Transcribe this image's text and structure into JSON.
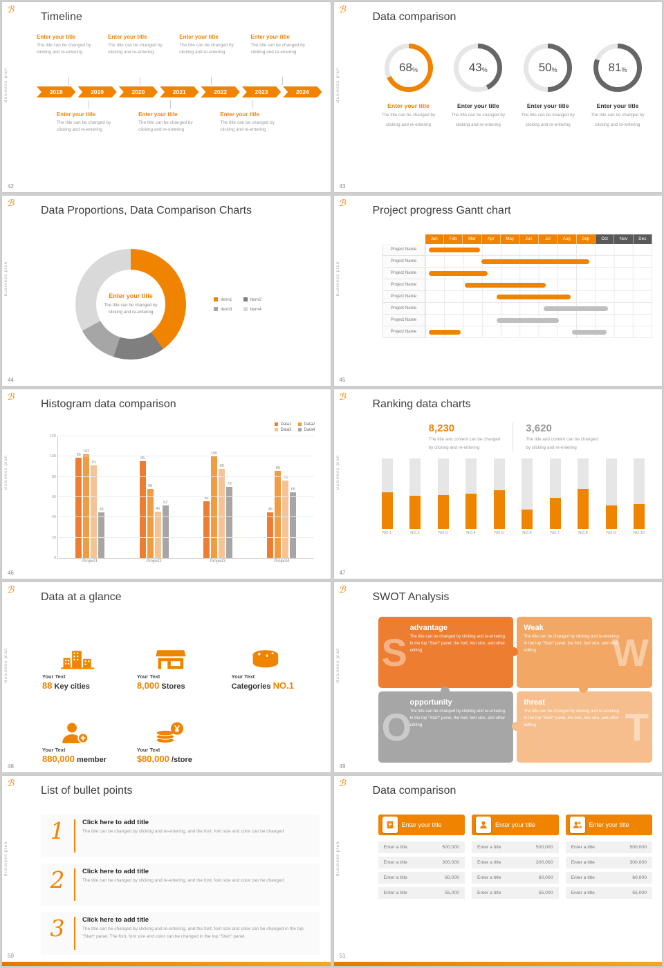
{
  "theme": {
    "orange": "#F08300",
    "orange_light": "#F2A765",
    "orange_pale": "#F6BE8C",
    "gray": "#A6A6A6",
    "gray_dark": "#595959",
    "bar_gray": "#BFBFBF",
    "ring_gray": "#666666",
    "ring_rest": "#E6E6E6"
  },
  "common": {
    "logo": "ℬ",
    "side_text": "Business plan"
  },
  "slides": {
    "s42": {
      "num": "42",
      "title": "Timeline",
      "years": [
        "2018",
        "2019",
        "2020",
        "2021",
        "2022",
        "2023",
        "2024"
      ],
      "top_count": 4,
      "bottom_count": 3,
      "entry_title": "Enter your title",
      "entry_caption": [
        "The title can be changed by",
        "clicking and re-entering"
      ]
    },
    "s43": {
      "num": "43",
      "title": "Data comparison",
      "rings": [
        {
          "pct": 68,
          "highlight": true
        },
        {
          "pct": 43,
          "highlight": false
        },
        {
          "pct": 50,
          "highlight": false
        },
        {
          "pct": 81,
          "highlight": false
        }
      ],
      "ring_title": "Enter your title",
      "ring_caption": [
        "The title can be changed by",
        "clicking and re-entering"
      ]
    },
    "s44": {
      "num": "44",
      "title": "Data Proportions, Data Comparison Charts",
      "center_title": "Enter your title",
      "center_caption": [
        "The title can be changed by",
        "clicking and re-entering"
      ],
      "chart_data": {
        "type": "pie",
        "segments": [
          {
            "label": "Item1",
            "value": 40,
            "color": "#F08300"
          },
          {
            "label": "Item2",
            "value": 15,
            "color": "#7F7F7F"
          },
          {
            "label": "Item3",
            "value": 12,
            "color": "#A6A6A6"
          },
          {
            "label": "Item4",
            "value": 33,
            "color": "#D9D9D9"
          }
        ]
      }
    },
    "s45": {
      "num": "45",
      "title": "Project progress Gantt chart",
      "months": [
        "Jan",
        "Feb",
        "Mar",
        "Apr",
        "May",
        "Jun",
        "Jul",
        "Aug",
        "Sep",
        "Oct",
        "Nov",
        "Dec"
      ],
      "orange_months": 9,
      "row_label": "Project Name",
      "rows": [
        [
          {
            "start": 0.2,
            "end": 2.9,
            "color": "orange"
          }
        ],
        [
          {
            "start": 3.0,
            "end": 8.7,
            "color": "orange"
          }
        ],
        [
          {
            "start": 0.2,
            "end": 3.3,
            "color": "orange"
          }
        ],
        [
          {
            "start": 2.1,
            "end": 6.4,
            "color": "orange"
          }
        ],
        [
          {
            "start": 3.8,
            "end": 7.7,
            "color": "orange"
          }
        ],
        [
          {
            "start": 6.3,
            "end": 9.7,
            "color": "gray"
          }
        ],
        [
          {
            "start": 3.8,
            "end": 7.1,
            "color": "gray"
          }
        ],
        [
          {
            "start": 0.2,
            "end": 1.9,
            "color": "orange"
          },
          {
            "start": 7.8,
            "end": 9.6,
            "color": "gray"
          }
        ]
      ]
    },
    "s46": {
      "num": "46",
      "title": "Histogram data comparison",
      "chart_data": {
        "type": "bar",
        "categories": [
          "Project1",
          "Project2",
          "Project3",
          "Project4"
        ],
        "series": [
          {
            "name": "Data1",
            "color": "#ED7D31",
            "values": [
              99,
              95,
              56,
              45
            ]
          },
          {
            "name": "Data2",
            "color": "#F09C42",
            "values": [
              102,
              68,
              100,
              86
            ]
          },
          {
            "name": "Data3",
            "color": "#F6C396",
            "values": [
              91,
              46,
              88,
              76
            ]
          },
          {
            "name": "Data4",
            "color": "#A6A6A6",
            "values": [
              45,
              52,
              70,
              65
            ]
          }
        ],
        "yticks": [
          0,
          20,
          40,
          60,
          80,
          100,
          120
        ],
        "ymax": 120
      }
    },
    "s47": {
      "num": "47",
      "title": "Ranking data charts",
      "stats": [
        {
          "value": "8,230",
          "highlight": true
        },
        {
          "value": "3,620",
          "highlight": false
        }
      ],
      "stat_caption": [
        "The title and content can be changed",
        "by clicking and re-entering"
      ],
      "chart_data": {
        "type": "bar",
        "categories": [
          "NO.1",
          "NO.2",
          "NO.3",
          "NO.4",
          "NO.5",
          "NO.6",
          "NO.7",
          "NO.8",
          "NO.9",
          "NO.10"
        ],
        "values": [
          52,
          47,
          48,
          50,
          55,
          28,
          44,
          57,
          33,
          35
        ],
        "ymax": 100
      }
    },
    "s48": {
      "num": "48",
      "title": "Data at a glance",
      "items": [
        {
          "icon": "city-icon",
          "label": "Your Text",
          "parts": [
            {
              "text": "88",
              "accent": true
            },
            {
              "text": " Key cities",
              "accent": false
            }
          ]
        },
        {
          "icon": "store-icon",
          "label": "Your Text",
          "parts": [
            {
              "text": "8,000",
              "accent": true
            },
            {
              "text": " Stores",
              "accent": false
            }
          ]
        },
        {
          "icon": "categories-icon",
          "label": "Your Text",
          "parts": [
            {
              "text": "Categories ",
              "accent": false
            },
            {
              "text": "NO.1",
              "accent": true
            }
          ]
        },
        {
          "icon": "member-icon",
          "label": "Your Text",
          "parts": [
            {
              "text": "880,000",
              "accent": true
            },
            {
              "text": " member",
              "accent": false
            }
          ]
        },
        {
          "icon": "money-icon",
          "label": "Your Text",
          "parts": [
            {
              "text": "$80,000",
              "accent": true
            },
            {
              "text": " /store",
              "accent": false
            }
          ]
        }
      ]
    },
    "s49": {
      "num": "49",
      "title": "SWOT Analysis",
      "quadrants": [
        {
          "letter": "S",
          "word": "advantage",
          "color": "#ED7D31",
          "caption": "The title can be changed by clicking and re-entering. In the top \"Start\" panel, the font, font size, and other editing"
        },
        {
          "letter": "W",
          "word": "Weak",
          "color": "#F2A765",
          "caption": "The title can be changed by clicking and re-entering. In the top \"Start\" panel, the font, font size, and other editing"
        },
        {
          "letter": "O",
          "word": "opportunity",
          "color": "#A6A6A6",
          "caption": "The title can be changed by clicking and re-entering. In the top \"Start\" panel, the font, font size, and other editing"
        },
        {
          "letter": "T",
          "word": "threat",
          "color": "#F6BE8C",
          "caption": "The title can be changed by clicking and re-entering. In the top \"Start\" panel, the font, font size, and other editing"
        }
      ]
    },
    "s50": {
      "num": "50",
      "title": "List of bullet points",
      "items": [
        {
          "num": "1",
          "title": "Click here to add title",
          "caption": "The title can be changed by clicking and re-entering, and the font, font size and color can be changed"
        },
        {
          "num": "2",
          "title": "Click here to add title",
          "caption": "The title can be changed by clicking and re-entering, and the font, font size and color can be changed"
        },
        {
          "num": "3",
          "title": "Click here to add title",
          "caption": "The title can be changed by clicking and re-entering, and the font, font size and color can be changed in the top \"Start\" panel. The font, font size and color can be changed in the top \"Start\" panel."
        }
      ]
    },
    "s51": {
      "num": "51",
      "title": "Data comparison",
      "tables": [
        {
          "icon": "report-icon",
          "header": "Enter your title",
          "rows": [
            [
              "Enter a title",
              "500,000"
            ],
            [
              "Enter a title",
              "300,000"
            ],
            [
              "Enter a title",
              "60,000"
            ],
            [
              "Enter a title",
              "55,000"
            ]
          ]
        },
        {
          "icon": "person-icon",
          "header": "Enter your title",
          "rows": [
            [
              "Enter a title",
              "500,000"
            ],
            [
              "Enter a title",
              "300,000"
            ],
            [
              "Enter a title",
              "60,000"
            ],
            [
              "Enter a title",
              "55,000"
            ]
          ]
        },
        {
          "icon": "people-icon",
          "header": "Enter your title",
          "rows": [
            [
              "Enter a title",
              "500,000"
            ],
            [
              "Enter a title",
              "300,000"
            ],
            [
              "Enter a title",
              "60,000"
            ],
            [
              "Enter a title",
              "55,000"
            ]
          ]
        }
      ]
    }
  }
}
